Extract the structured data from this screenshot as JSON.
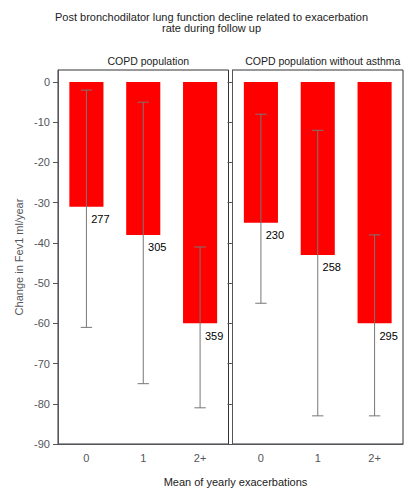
{
  "chart_data": {
    "type": "bar",
    "title": "Post bronchodilator lung function decline related to exacerbation\nrate during follow up",
    "xlabel": "Mean of yearly exacerbations",
    "ylabel": "Change in Fev1 ml/year",
    "categories": [
      "0",
      "1",
      "2+"
    ],
    "ylim": [
      -90,
      3
    ],
    "yticks": [
      0,
      -10,
      -20,
      -30,
      -40,
      -50,
      -60,
      -70,
      -80,
      -90
    ],
    "grid": false,
    "color": "#FF0000",
    "series": [
      {
        "name": "COPD population",
        "values": [
          -31,
          -38,
          -60
        ],
        "error_lower": [
          -61,
          -75,
          -81
        ],
        "error_upper": [
          -2,
          -5,
          -41
        ],
        "annotations": [
          "277",
          "305",
          "359"
        ]
      },
      {
        "name": "COPD population without asthma",
        "values": [
          -35,
          -43,
          -60
        ],
        "error_lower": [
          -55,
          -83,
          -83
        ],
        "error_upper": [
          -8,
          -12,
          -38
        ],
        "annotations": [
          "230",
          "258",
          "295"
        ]
      }
    ]
  }
}
